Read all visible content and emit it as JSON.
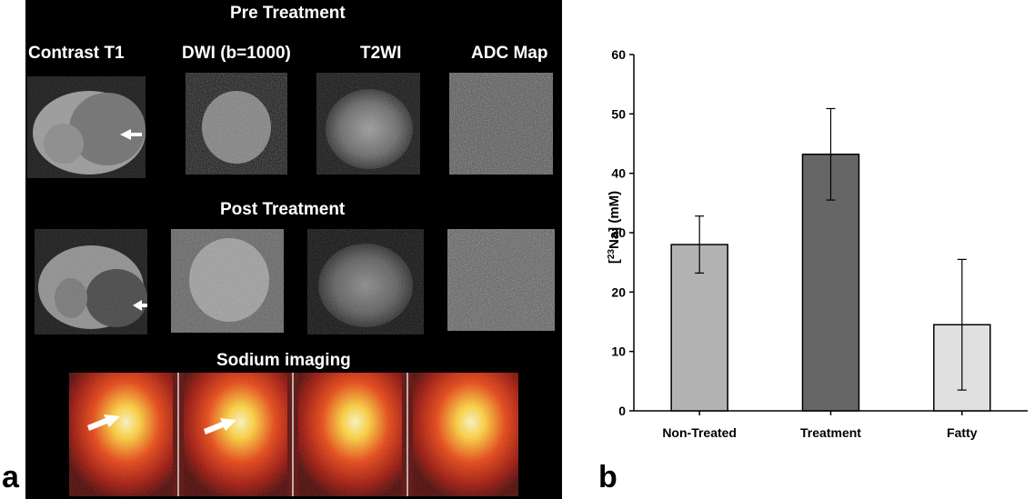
{
  "panel_a": {
    "letter": "a",
    "pre_title": "Pre Treatment",
    "post_title": "Post Treatment",
    "sodium_title": "Sodium imaging",
    "columns": [
      "Contrast T1",
      "DWI (b=1000)",
      "T2WI",
      "ADC Map"
    ]
  },
  "panel_b": {
    "letter": "b"
  },
  "chart_data": {
    "type": "bar",
    "categories": [
      "Non-Treated",
      "Treatment",
      "Fatty"
    ],
    "values": [
      28,
      43.2,
      14.5
    ],
    "errors": [
      4.8,
      7.7,
      11
    ],
    "ylabel": "[²³Na] (mM)",
    "ylabel_super": "23",
    "ylabel_prefix": "[",
    "ylabel_suffix": "Na] (mM)",
    "ylim": [
      0,
      60
    ],
    "yticks": [
      0,
      10,
      20,
      30,
      40,
      50,
      60
    ],
    "bar_colors": [
      "#b3b3b3",
      "#666666",
      "#e0e0e0"
    ],
    "grid": false
  }
}
